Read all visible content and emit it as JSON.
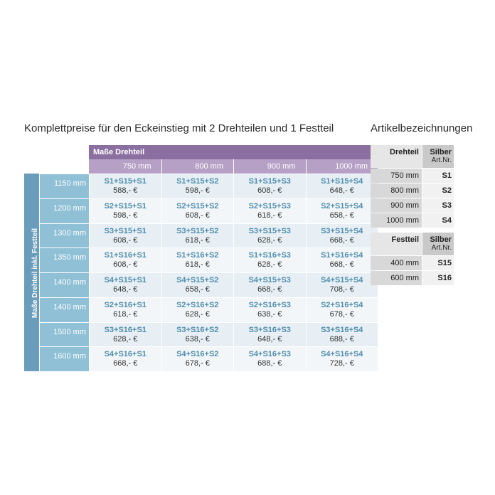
{
  "title_main": "Komplettpreise für den Eckeinstieg mit 2 Drehteilen und 1 Festteil",
  "title_side": "Artikelbezeichnungen",
  "price_table": {
    "header": "Maße Drehteil",
    "vertical_label": "Maße Drehteil inkl. Festteil",
    "col_sizes": [
      "750 mm",
      "800 mm",
      "900 mm",
      "1000 mm"
    ],
    "rows": [
      {
        "label": "1150 mm",
        "cells": [
          [
            "S1+S15+S1",
            "588,- €"
          ],
          [
            "S1+S15+S2",
            "598,- €"
          ],
          [
            "S1+S15+S3",
            "608,- €"
          ],
          [
            "S1+S15+S4",
            "648,- €"
          ]
        ]
      },
      {
        "label": "1200 mm",
        "cells": [
          [
            "S2+S15+S1",
            "598,- €"
          ],
          [
            "S2+S15+S2",
            "608,- €"
          ],
          [
            "S2+S15+S3",
            "618,- €"
          ],
          [
            "S2+S15+S4",
            "658,- €"
          ]
        ]
      },
      {
        "label": "1300 mm",
        "cells": [
          [
            "S3+S15+S1",
            "608,- €"
          ],
          [
            "S3+S15+S2",
            "618,- €"
          ],
          [
            "S3+S15+S3",
            "628,- €"
          ],
          [
            "S3+S15+S4",
            "668,- €"
          ]
        ]
      },
      {
        "label": "1350 mm",
        "cells": [
          [
            "S1+S16+S1",
            "608,- €"
          ],
          [
            "S1+S16+S2",
            "618,- €"
          ],
          [
            "S1+S16+S3",
            "628,- €"
          ],
          [
            "S1+S16+S4",
            "668,- €"
          ]
        ]
      },
      {
        "label": "1400 mm",
        "cells": [
          [
            "S4+S15+S1",
            "648,- €"
          ],
          [
            "S4+S15+S2",
            "658,- €"
          ],
          [
            "S4+S15+S3",
            "668,- €"
          ],
          [
            "S4+S15+S4",
            "708,- €"
          ]
        ]
      },
      {
        "label": "1400 mm",
        "cells": [
          [
            "S2+S16+S1",
            "618,- €"
          ],
          [
            "S2+S16+S2",
            "628,- €"
          ],
          [
            "S2+S16+S3",
            "638,- €"
          ],
          [
            "S2+S16+S4",
            "678,- €"
          ]
        ]
      },
      {
        "label": "1500 mm",
        "cells": [
          [
            "S3+S16+S1",
            "628,- €"
          ],
          [
            "S3+S16+S2",
            "638,- €"
          ],
          [
            "S3+S16+S3",
            "648,- €"
          ],
          [
            "S3+S16+S4",
            "688,- €"
          ]
        ]
      },
      {
        "label": "1600 mm",
        "cells": [
          [
            "S4+S16+S1",
            "668,- €"
          ],
          [
            "S4+S16+S2",
            "678,- €"
          ],
          [
            "S4+S16+S3",
            "688,- €"
          ],
          [
            "S4+S16+S4",
            "728,- €"
          ]
        ]
      }
    ]
  },
  "drehteil_table": {
    "head_left": "Drehteil",
    "head_right_top": "Silber",
    "head_right_bottom": "Art.Nr.",
    "rows": [
      {
        "size": "750 mm",
        "code": "S1"
      },
      {
        "size": "800 mm",
        "code": "S2"
      },
      {
        "size": "900 mm",
        "code": "S3"
      },
      {
        "size": "1000 mm",
        "code": "S4"
      }
    ]
  },
  "festteil_table": {
    "head_left": "Festteil",
    "head_right_top": "Silber",
    "head_right_bottom": "Art.Nr.",
    "rows": [
      {
        "size": "400 mm",
        "code": "S15"
      },
      {
        "size": "600 mm",
        "code": "S16"
      }
    ]
  }
}
